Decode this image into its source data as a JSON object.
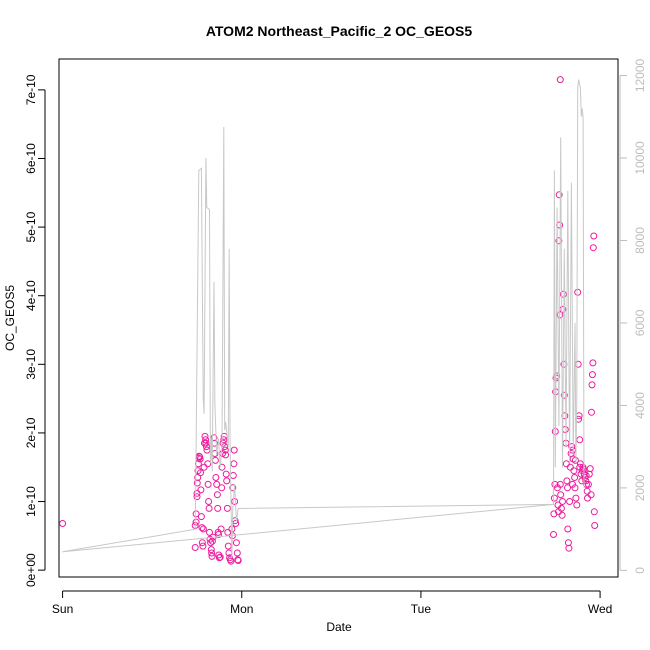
{
  "chart_data": {
    "type": "scatter",
    "title": "ATOM2 Northeast_Pacific_2 OC_GEOS5",
    "xlabel": "Date",
    "ylabel": "OC_GEOS5",
    "x_unit": "days",
    "xlim": [
      -0.02,
      3.1
    ],
    "ylim": [
      -1e-11,
      7.45e-10
    ],
    "y2lim": [
      -160,
      12400
    ],
    "x_ticks": [
      {
        "value": 0,
        "label": "Sun"
      },
      {
        "value": 1,
        "label": "Mon"
      },
      {
        "value": 2,
        "label": "Tue"
      },
      {
        "value": 3,
        "label": "Wed"
      }
    ],
    "y_ticks": [
      {
        "value": 0,
        "label": "0e+00"
      },
      {
        "value": 1e-10,
        "label": "1e-10"
      },
      {
        "value": 2e-10,
        "label": "2e-10"
      },
      {
        "value": 3e-10,
        "label": "3e-10"
      },
      {
        "value": 4e-10,
        "label": "4e-10"
      },
      {
        "value": 5e-10,
        "label": "5e-10"
      },
      {
        "value": 6e-10,
        "label": "6e-10"
      },
      {
        "value": 7e-10,
        "label": "7e-10"
      }
    ],
    "y2_ticks": [
      {
        "value": 0,
        "label": "0"
      },
      {
        "value": 2000,
        "label": "2000"
      },
      {
        "value": 4000,
        "label": "4000"
      },
      {
        "value": 6000,
        "label": "6000"
      },
      {
        "value": 8000,
        "label": "8000"
      },
      {
        "value": 10000,
        "label": "10000"
      },
      {
        "value": 12000,
        "label": "12000"
      }
    ],
    "grid": false,
    "series": [
      {
        "kind": "points",
        "axis": "left",
        "color": "#ee1c9e",
        "marker": "open-circle",
        "points": [
          [
            0.0,
            6.8e-11
          ],
          [
            0.74,
            3.3e-11
          ],
          [
            0.74,
            6.5e-11
          ],
          [
            0.745,
            7e-11
          ],
          [
            0.745,
            8.2e-11
          ],
          [
            0.75,
            1.07e-10
          ],
          [
            0.75,
            1.12e-10
          ],
          [
            0.752,
            1.27e-10
          ],
          [
            0.754,
            1.35e-10
          ],
          [
            0.756,
            1.45e-10
          ],
          [
            0.758,
            1.55e-10
          ],
          [
            0.76,
            1.63e-10
          ],
          [
            0.762,
            1.66e-10
          ],
          [
            0.765,
            1.65e-10
          ],
          [
            0.768,
            1.62e-10
          ],
          [
            0.77,
            1.42e-10
          ],
          [
            0.772,
            1.17e-10
          ],
          [
            0.775,
            7.8e-11
          ],
          [
            0.778,
            6.2e-11
          ],
          [
            0.78,
            4e-11
          ],
          [
            0.783,
            3.5e-11
          ],
          [
            0.786,
            6e-11
          ],
          [
            0.79,
            1.5e-10
          ],
          [
            0.792,
            1.85e-10
          ],
          [
            0.795,
            1.95e-10
          ],
          [
            0.798,
            1.9e-10
          ],
          [
            0.8,
            1.85e-10
          ],
          [
            0.803,
            1.8e-10
          ],
          [
            0.806,
            1.75e-10
          ],
          [
            0.81,
            1.55e-10
          ],
          [
            0.812,
            1.25e-10
          ],
          [
            0.815,
            1e-10
          ],
          [
            0.818,
            9e-11
          ],
          [
            0.82,
            5.5e-11
          ],
          [
            0.823,
            4.5e-11
          ],
          [
            0.826,
            4e-11
          ],
          [
            0.83,
            3e-11
          ],
          [
            0.832,
            2.5e-11
          ],
          [
            0.834,
            2e-11
          ],
          [
            0.836,
            4.2e-11
          ],
          [
            0.84,
            4.8e-11
          ],
          [
            0.845,
            1.93e-10
          ],
          [
            0.848,
            1.85e-10
          ],
          [
            0.85,
            1.7e-10
          ],
          [
            0.853,
            1.6e-10
          ],
          [
            0.856,
            1.35e-10
          ],
          [
            0.86,
            1.25e-10
          ],
          [
            0.864,
            1.1e-10
          ],
          [
            0.866,
            9e-11
          ],
          [
            0.868,
            5.5e-11
          ],
          [
            0.87,
            5.2e-11
          ],
          [
            0.872,
            2.2e-11
          ],
          [
            0.875,
            1.8e-11
          ],
          [
            0.88,
            1.9e-11
          ],
          [
            0.885,
            6e-11
          ],
          [
            0.888,
            1.2e-10
          ],
          [
            0.89,
            1.5e-10
          ],
          [
            0.893,
            1.7e-10
          ],
          [
            0.896,
            1.85e-10
          ],
          [
            0.9,
            1.9e-10
          ],
          [
            0.902,
            1.95e-10
          ],
          [
            0.905,
            1.8e-10
          ],
          [
            0.908,
            1.75e-10
          ],
          [
            0.91,
            1.68e-10
          ],
          [
            0.913,
            1.4e-10
          ],
          [
            0.916,
            1.3e-10
          ],
          [
            0.92,
            9e-11
          ],
          [
            0.922,
            5.5e-11
          ],
          [
            0.925,
            3.5e-11
          ],
          [
            0.928,
            2.5e-11
          ],
          [
            0.932,
            1.8e-11
          ],
          [
            0.936,
            1.5e-11
          ],
          [
            0.94,
            1.3e-11
          ],
          [
            0.945,
            6e-11
          ],
          [
            0.948,
            5e-11
          ],
          [
            0.95,
            1.2e-10
          ],
          [
            0.953,
            1.38e-10
          ],
          [
            0.956,
            1.55e-10
          ],
          [
            0.958,
            1.75e-10
          ],
          [
            0.96,
            1e-10
          ],
          [
            0.963,
            7.2e-11
          ],
          [
            0.966,
            6.8e-11
          ],
          [
            0.97,
            4e-11
          ],
          [
            0.975,
            2.5e-11
          ],
          [
            0.978,
            1.5e-11
          ],
          [
            0.98,
            1.4e-11
          ],
          [
            2.74,
            5.2e-11
          ],
          [
            2.742,
            8.2e-11
          ],
          [
            2.745,
            1.05e-10
          ],
          [
            2.748,
            1.25e-10
          ],
          [
            2.75,
            2.02e-10
          ],
          [
            2.752,
            2.6e-10
          ],
          [
            2.754,
            2.8e-10
          ],
          [
            2.758,
            2.83e-10
          ],
          [
            2.762,
            1.2e-10
          ],
          [
            2.765,
            9.5e-11
          ],
          [
            2.768,
            8.5e-11
          ],
          [
            2.77,
            4.8e-10
          ],
          [
            2.772,
            5.47e-10
          ],
          [
            2.774,
            5.03e-10
          ],
          [
            2.776,
            3.72e-10
          ],
          [
            2.778,
            1.25e-10
          ],
          [
            2.78,
            1.1e-10
          ],
          [
            2.784,
            9e-11
          ],
          [
            2.788,
            8e-11
          ],
          [
            2.79,
            1e-10
          ],
          [
            2.792,
            3.8e-10
          ],
          [
            2.795,
            4.02e-10
          ],
          [
            2.798,
            3e-10
          ],
          [
            2.8,
            2.55e-10
          ],
          [
            2.803,
            2.25e-10
          ],
          [
            2.806,
            2.05e-10
          ],
          [
            2.81,
            1.85e-10
          ],
          [
            2.812,
            1.55e-10
          ],
          [
            2.815,
            1.3e-10
          ],
          [
            2.818,
            1.2e-10
          ],
          [
            2.82,
            6e-11
          ],
          [
            2.823,
            4e-11
          ],
          [
            2.826,
            3.2e-11
          ],
          [
            2.83,
            1e-10
          ],
          [
            2.834,
            1.5e-10
          ],
          [
            2.838,
            1.7e-10
          ],
          [
            2.842,
            1.8e-10
          ],
          [
            2.846,
            1.75e-10
          ],
          [
            2.85,
            1.62e-10
          ],
          [
            2.854,
            1.45e-10
          ],
          [
            2.858,
            1.35e-10
          ],
          [
            2.86,
            1.2e-10
          ],
          [
            2.865,
            1.05e-10
          ],
          [
            2.87,
            9.5e-11
          ],
          [
            2.875,
            4.05e-10
          ],
          [
            2.878,
            3e-10
          ],
          [
            2.88,
            2.2e-10
          ],
          [
            2.883,
            2.25e-10
          ],
          [
            2.886,
            1.9e-10
          ],
          [
            2.89,
            1.55e-10
          ],
          [
            2.894,
            1.4e-10
          ],
          [
            2.898,
            1.3e-10
          ],
          [
            2.9,
            1.45e-10
          ],
          [
            2.904,
            1.5e-10
          ],
          [
            2.908,
            1.47e-10
          ],
          [
            2.912,
            1.4e-10
          ],
          [
            2.916,
            1.35e-10
          ],
          [
            2.92,
            1.3e-10
          ],
          [
            2.924,
            1.25e-10
          ],
          [
            2.928,
            1.15e-10
          ],
          [
            2.93,
            1.05e-10
          ],
          [
            2.935,
            1.25e-10
          ],
          [
            2.94,
            1.4e-10
          ],
          [
            2.945,
            1.48e-10
          ],
          [
            2.95,
            1.1e-10
          ],
          [
            2.952,
            2.3e-10
          ],
          [
            2.955,
            2.7e-10
          ],
          [
            2.957,
            2.85e-10
          ],
          [
            2.96,
            3.02e-10
          ],
          [
            2.962,
            4.7e-10
          ],
          [
            2.965,
            4.87e-10
          ],
          [
            2.968,
            8.5e-11
          ],
          [
            2.97,
            6.5e-11
          ],
          [
            2.778,
            7.15e-10
          ],
          [
            2.846,
            1.25e-10
          ],
          [
            2.862,
            1.6e-10
          ],
          [
            2.887,
            1.5e-10
          ],
          [
            2.922,
            1.38e-10
          ]
        ]
      },
      {
        "kind": "line",
        "axis": "right",
        "color": "#c8c8c8",
        "points": [
          [
            0.0,
            450
          ],
          [
            0.74,
            1000
          ],
          [
            0.745,
            3000
          ],
          [
            0.76,
            9700
          ],
          [
            0.775,
            9750
          ],
          [
            0.785,
            4200
          ],
          [
            0.79,
            3800
          ],
          [
            0.8,
            10000
          ],
          [
            0.805,
            8800
          ],
          [
            0.82,
            8750
          ],
          [
            0.825,
            2600
          ],
          [
            0.83,
            3200
          ],
          [
            0.835,
            2400
          ],
          [
            0.845,
            7000
          ],
          [
            0.85,
            4000
          ],
          [
            0.86,
            2800
          ],
          [
            0.87,
            3200
          ],
          [
            0.88,
            2500
          ],
          [
            0.89,
            3000
          ],
          [
            0.9,
            10750
          ],
          [
            0.905,
            3400
          ],
          [
            0.91,
            3600
          ],
          [
            0.925,
            3000
          ],
          [
            0.93,
            7800
          ],
          [
            0.935,
            3000
          ],
          [
            0.945,
            300
          ],
          [
            0.95,
            1500
          ],
          [
            0.96,
            2100
          ],
          [
            0.97,
            1200
          ],
          [
            0.98,
            1500
          ],
          [
            2.74,
            1600
          ],
          [
            2.745,
            9700
          ],
          [
            2.75,
            2500
          ],
          [
            2.76,
            8800
          ],
          [
            2.77,
            3500
          ],
          [
            2.78,
            10500
          ],
          [
            2.79,
            2500
          ],
          [
            2.8,
            7800
          ],
          [
            2.81,
            3000
          ],
          [
            2.82,
            9200
          ],
          [
            2.83,
            2600
          ],
          [
            2.84,
            9400
          ],
          [
            2.85,
            2800
          ],
          [
            2.86,
            6000
          ],
          [
            2.865,
            2600
          ],
          [
            2.87,
            4200
          ],
          [
            2.875,
            11700
          ],
          [
            2.88,
            11900
          ],
          [
            2.89,
            11700
          ],
          [
            2.895,
            11000
          ],
          [
            2.9,
            11200
          ],
          [
            2.905,
            11000
          ],
          [
            2.91,
            2000
          ]
        ]
      },
      {
        "kind": "line",
        "axis": "right",
        "color": "#c8c8c8",
        "points": [
          [
            0.0,
            450
          ],
          [
            2.74,
            1600
          ]
        ]
      }
    ]
  }
}
